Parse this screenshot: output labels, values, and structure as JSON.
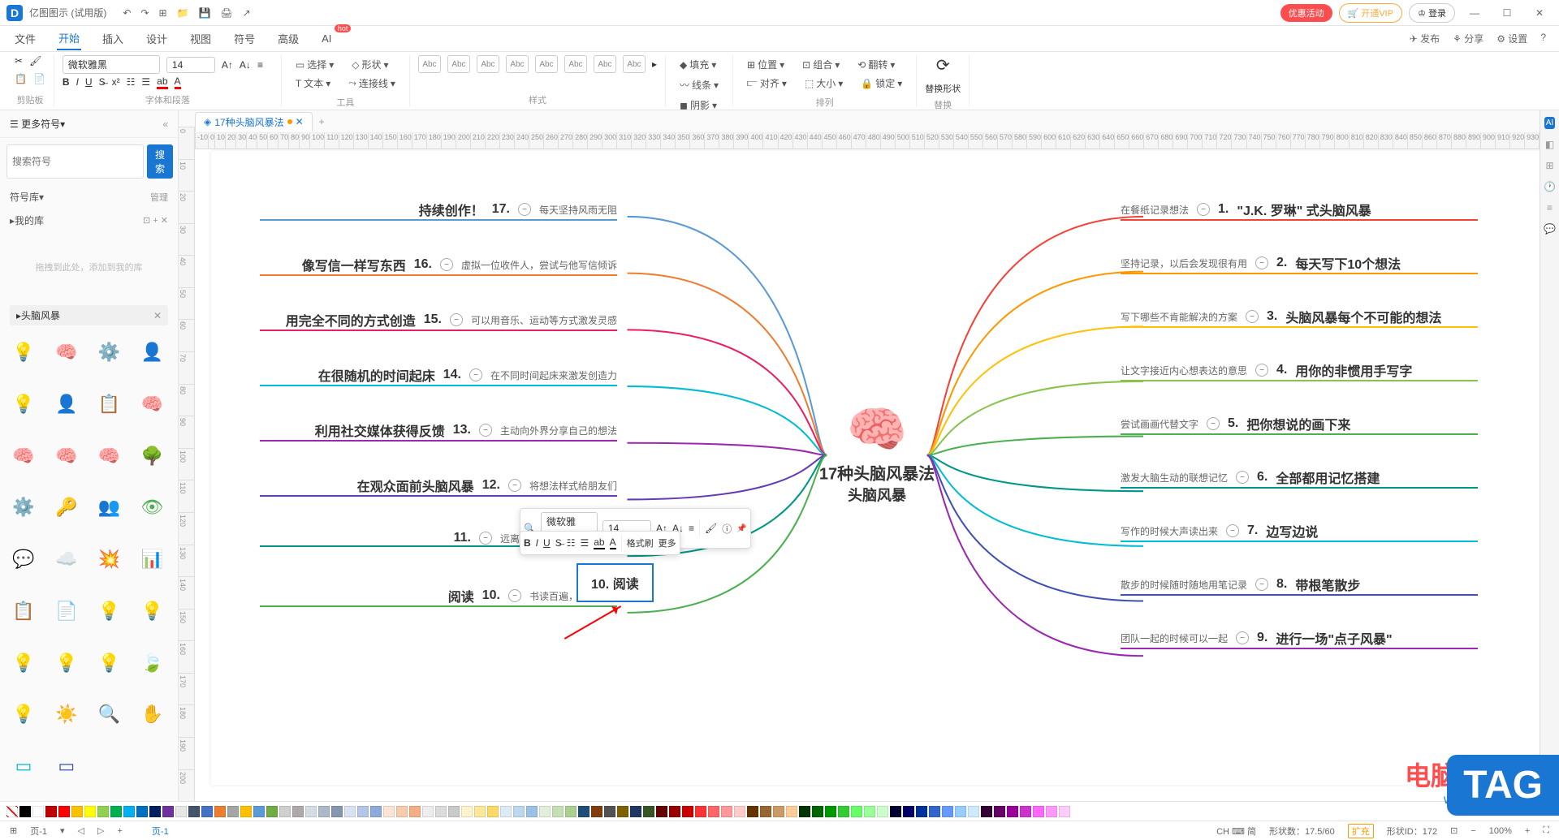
{
  "app": {
    "name": "亿图图示 (试用版)"
  },
  "titlebar_buttons": {
    "promo": "优惠活动",
    "vip": "🛒 开通VIP",
    "login": "♔ 登录"
  },
  "menu": {
    "items": [
      "文件",
      "开始",
      "插入",
      "设计",
      "视图",
      "符号",
      "高级",
      "AI"
    ],
    "active_index": 1,
    "right": {
      "publish": "✈ 发布",
      "share": "⚘ 分享",
      "settings": "⚙ 设置"
    }
  },
  "ribbon": {
    "clipboard": {
      "label": "剪贴板"
    },
    "font": {
      "family": "微软雅黑",
      "size": "14",
      "label": "字体和段落"
    },
    "tool": {
      "select": "选择",
      "text": "文本",
      "shape": "形状",
      "connector": "连接线",
      "label": "工具"
    },
    "style": {
      "label": "样式",
      "swatch": "Abc"
    },
    "fill": {
      "fill": "填充",
      "line": "线条",
      "shadow": "阴影"
    },
    "arrange": {
      "pos": "位置",
      "align": "对齐",
      "group": "组合",
      "size": "大小",
      "rotate": "翻转",
      "lock": "锁定",
      "label": "排列"
    },
    "replace": {
      "btn": "替换形状",
      "label": "替换"
    }
  },
  "leftpanel": {
    "more": "更多符号",
    "search_ph": "搜索符号",
    "search_btn": "搜索",
    "lib": "符号库",
    "manage": "管理",
    "mylib": "我的库",
    "drop": "拖拽到此处，添加到我的库",
    "tag": "头脑风暴",
    "icons": [
      {
        "g": "💡",
        "c": "#4caf50"
      },
      {
        "g": "🧠",
        "c": "#e91e63"
      },
      {
        "g": "⚙️",
        "c": "#ffc107"
      },
      {
        "g": "👤",
        "c": "#333"
      },
      {
        "g": "💡",
        "c": "#ffeb3b"
      },
      {
        "g": "👤",
        "c": "#00bcd4"
      },
      {
        "g": "📋",
        "c": "#f44336"
      },
      {
        "g": "🧠",
        "c": "#3f51b5"
      },
      {
        "g": "🧠",
        "c": "#ffcdd2"
      },
      {
        "g": "🧠",
        "c": "#b3e5fc"
      },
      {
        "g": "🧠",
        "c": "#ffcdd2"
      },
      {
        "g": "🌳",
        "c": "#4caf50"
      },
      {
        "g": "⚙️",
        "c": "#f44336"
      },
      {
        "g": "🔑",
        "c": "#ffc107"
      },
      {
        "g": "👥",
        "c": "#ff9800"
      },
      {
        "g": "👁",
        "c": "#4caf50"
      },
      {
        "g": "💬",
        "c": "#ff9800"
      },
      {
        "g": "☁️",
        "c": "#ffc107"
      },
      {
        "g": "💥",
        "c": "#ffc107"
      },
      {
        "g": "📊",
        "c": "#00bcd4"
      },
      {
        "g": "📋",
        "c": "#ff9800"
      },
      {
        "g": "📄",
        "c": "#4caf50"
      },
      {
        "g": "💡",
        "c": "#00bcd4"
      },
      {
        "g": "💡",
        "c": "#ffc107"
      },
      {
        "g": "💡",
        "c": "#ffeb3b"
      },
      {
        "g": "💡",
        "c": "#8bc34a"
      },
      {
        "g": "💡",
        "c": "#9e9e9e"
      },
      {
        "g": "🍃",
        "c": "#4caf50"
      },
      {
        "g": "💡",
        "c": "#ffc107"
      },
      {
        "g": "☀️",
        "c": "#ffc107"
      },
      {
        "g": "🔍",
        "c": "#ffc107"
      },
      {
        "g": "✋",
        "c": "#ffc107"
      },
      {
        "g": "▭",
        "c": "#00bcd4"
      },
      {
        "g": "▭",
        "c": "#3f51b5"
      }
    ]
  },
  "doc": {
    "tab": "17种头脑风暴法"
  },
  "mindmap": {
    "center": {
      "line1": "17种头脑风暴法",
      "line2": "头脑风暴"
    },
    "left": [
      {
        "n": "17.",
        "t": "持续创作！",
        "s": "每天坚持风雨无阻",
        "c": "#5b9bd5"
      },
      {
        "n": "16.",
        "t": "像写信一样写东西",
        "s": "虚拟一位收件人，尝试与他写信倾诉",
        "c": "#ed7d31"
      },
      {
        "n": "15.",
        "t": "用完全不同的方式创造",
        "s": "可以用音乐、运动等方式激发灵感",
        "c": "#e91e63"
      },
      {
        "n": "14.",
        "t": "在很随机的时间起床",
        "s": "在不同时间起床来激发创造力",
        "c": "#00bcd4"
      },
      {
        "n": "13.",
        "t": "利用社交媒体获得反馈",
        "s": "主动向外界分享自己的想法",
        "c": "#9c27b0"
      },
      {
        "n": "12.",
        "t": "在观众面前头脑风暴",
        "s": "将想法样式给朋友们",
        "c": "#673ab7"
      },
      {
        "n": "11.",
        "t": "",
        "s": "远离手机和数码设备的干扰",
        "c": "#009688"
      },
      {
        "n": "10.",
        "t": "阅读",
        "s": "书读百遍，其义自见",
        "c": "#4caf50"
      }
    ],
    "right": [
      {
        "n": "1.",
        "t": "\"J.K. 罗琳\" 式头脑风暴",
        "s": "在餐纸记录想法",
        "c": "#f44336"
      },
      {
        "n": "2.",
        "t": "每天写下10个想法",
        "s": "坚持记录，以后会发现很有用",
        "c": "#ff9800"
      },
      {
        "n": "3.",
        "t": "头脑风暴每个不可能的想法",
        "s": "写下哪些不肯能解决的方案",
        "c": "#ffc107"
      },
      {
        "n": "4.",
        "t": "用你的非惯用手写字",
        "s": "让文字接近内心想表达的意思",
        "c": "#8bc34a"
      },
      {
        "n": "5.",
        "t": "把你想说的画下来",
        "s": "尝试画画代替文字",
        "c": "#4caf50"
      },
      {
        "n": "6.",
        "t": "全部都用记忆搭建",
        "s": "激发大脑生动的联想记忆",
        "c": "#009688"
      },
      {
        "n": "7.",
        "t": "边写边说",
        "s": "写作的时候大声读出来",
        "c": "#00bcd4"
      },
      {
        "n": "8.",
        "t": "带根笔散步",
        "s": "散步的时候随时随地用笔记录",
        "c": "#3f51b5"
      },
      {
        "n": "9.",
        "t": "进行一场\"点子风暴\"",
        "s": "团队一起的时候可以一起",
        "c": "#9c27b0"
      }
    ],
    "editing": {
      "n": "10.",
      "t": "阅读"
    }
  },
  "float": {
    "font": "微软雅黑",
    "size": "14",
    "brush": "格式刷",
    "more": "更多"
  },
  "colors": [
    "#000000",
    "#ffffff",
    "#c00000",
    "#ff0000",
    "#ffc000",
    "#ffff00",
    "#92d050",
    "#00b050",
    "#00b0f0",
    "#0070c0",
    "#002060",
    "#7030a0",
    "#e7e6e6",
    "#44546a",
    "#4472c4",
    "#ed7d31",
    "#a5a5a5",
    "#ffc000",
    "#5b9bd5",
    "#70ad47",
    "#d0cece",
    "#aeaaaa",
    "#d6dce5",
    "#adb9ca",
    "#8497b0",
    "#d9e1f2",
    "#b4c6e7",
    "#8ea9db",
    "#fce4d6",
    "#f8cbad",
    "#f4b084",
    "#ededed",
    "#dbdbdb",
    "#c9c9c9",
    "#fff2cc",
    "#ffe699",
    "#ffd966",
    "#ddebf7",
    "#bdd7ee",
    "#9bc2e6",
    "#e2efda",
    "#c6e0b4",
    "#a9d08e",
    "#1f4e78",
    "#833c0c",
    "#525252",
    "#806000",
    "#203764",
    "#375623",
    "#660000",
    "#990000",
    "#cc0000",
    "#ff3333",
    "#ff6666",
    "#ff9999",
    "#ffcccc",
    "#663300",
    "#996633",
    "#cc9966",
    "#ffcc99",
    "#003300",
    "#006600",
    "#009900",
    "#33cc33",
    "#66ff66",
    "#99ff99",
    "#ccffcc",
    "#000033",
    "#000066",
    "#003399",
    "#3366cc",
    "#6699ff",
    "#99ccff",
    "#ccebff",
    "#330033",
    "#660066",
    "#990099",
    "#cc33cc",
    "#ff66ff",
    "#ff99ff",
    "#ffccff"
  ],
  "status": {
    "page": "页-1",
    "pagetab": "页-1",
    "ime": "CH ⌨ 简",
    "shapes": "形状数：17.5/60",
    "upgrade": "扩充",
    "shapeid": "形状ID：172",
    "zoom": "100%"
  },
  "watermark": {
    "cn": "电脑技术网",
    "url": "www.tagxp.com",
    "tag": "TAG"
  }
}
